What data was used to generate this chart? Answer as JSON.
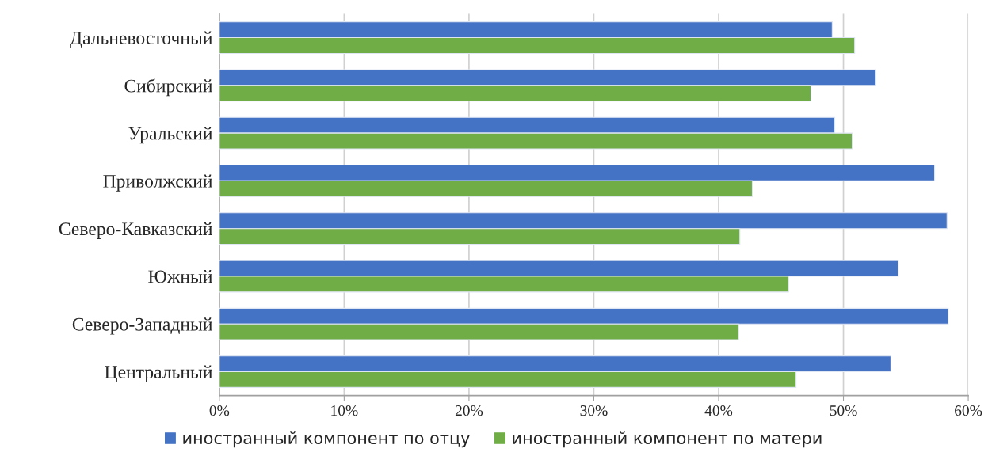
{
  "chart_data": {
    "type": "bar",
    "orientation": "horizontal",
    "categories": [
      "Дальневосточный",
      "Сибирский",
      "Уральский",
      "Приволжский",
      "Северо-Кавказский",
      "Южный",
      "Северо-Западный",
      "Центральный"
    ],
    "series": [
      {
        "name": "иностранный компонент по отцу",
        "color": "#4472c4",
        "values": [
          49.1,
          52.6,
          49.3,
          57.3,
          58.3,
          54.4,
          58.4,
          53.8
        ]
      },
      {
        "name": "иностранный компонент по матери",
        "color": "#70ad47",
        "values": [
          50.9,
          47.4,
          50.7,
          42.7,
          41.7,
          45.6,
          41.6,
          46.2
        ]
      }
    ],
    "xlim": [
      0,
      60
    ],
    "xticks": [
      {
        "value": 0,
        "label": "0%"
      },
      {
        "value": 10,
        "label": "10%"
      },
      {
        "value": 20,
        "label": "20%"
      },
      {
        "value": 30,
        "label": "30%"
      },
      {
        "value": 40,
        "label": "40%"
      },
      {
        "value": 50,
        "label": "50%"
      },
      {
        "value": 60,
        "label": "60%"
      }
    ],
    "grid": "x",
    "legend": "bottom"
  }
}
